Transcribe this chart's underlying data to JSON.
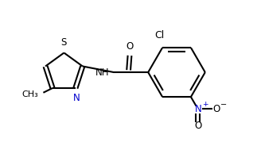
{
  "background": "#ffffff",
  "bond_color": "#000000",
  "label_color": "#000000",
  "n_color": "#0000cd",
  "o_color": "#000000",
  "s_color": "#000000",
  "line_width": 1.5,
  "font_size": 8.5,
  "figsize": [
    3.28,
    1.89
  ],
  "dpi": 100,
  "cl_label": "Cl",
  "nh_label": "NH",
  "o_label": "O",
  "s_label": "S",
  "n_label": "N",
  "ch3_label": "CH₃"
}
